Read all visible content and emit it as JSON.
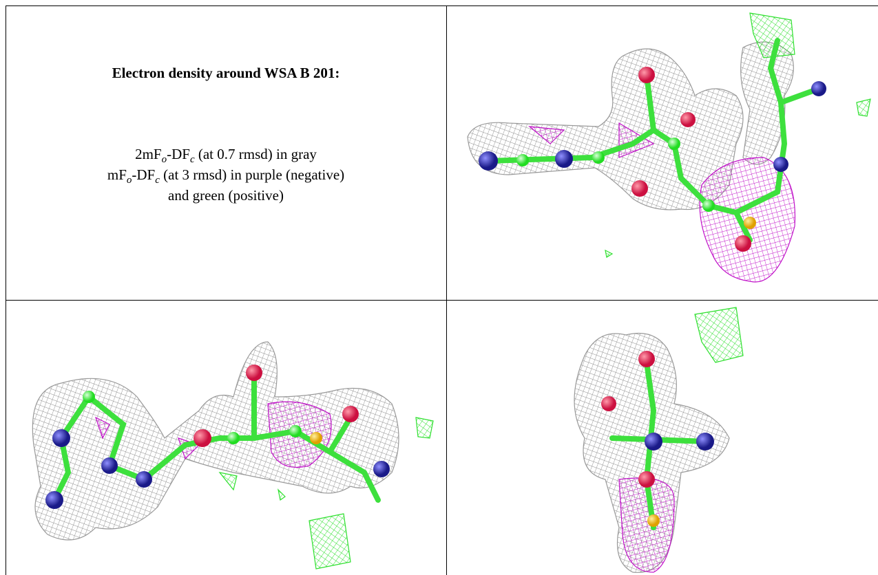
{
  "caption": {
    "title": "Electron density around WSA B 201:",
    "lines": [
      [
        {
          "text": "2mF"
        },
        {
          "sub": "o"
        },
        {
          "text": "-DF"
        },
        {
          "sub": "c"
        },
        {
          "text": " (at 0.7 rmsd) in gray"
        }
      ],
      [
        {
          "text": "mF"
        },
        {
          "sub": "o"
        },
        {
          "text": "-DF"
        },
        {
          "sub": "c"
        },
        {
          "text": " (at 3 rmsd) in purple (negative)"
        }
      ],
      [
        {
          "text": "and green (positive)"
        }
      ]
    ]
  }
}
